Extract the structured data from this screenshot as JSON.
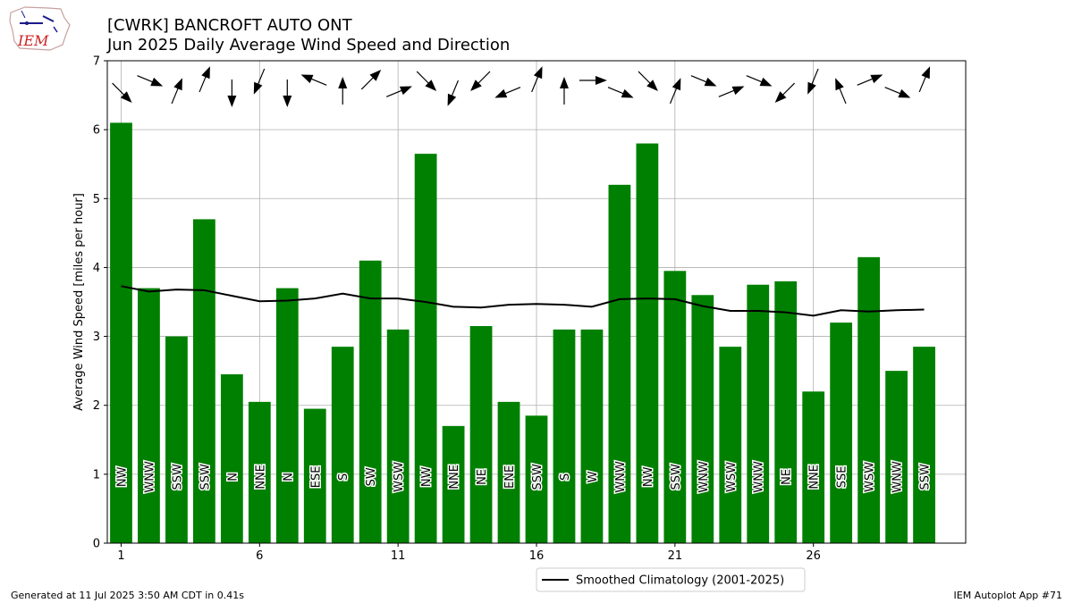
{
  "header": {
    "title_line_1": "[CWRK] BANCROFT AUTO  ONT",
    "title_line_2": "Jun 2025 Daily Average Wind Speed and Direction",
    "logo_text": "IEM"
  },
  "footer": {
    "left": "Generated at 11 Jul 2025 3:50 AM CDT in 0.41s",
    "right": "IEM Autoplot App #71"
  },
  "chart_data": {
    "type": "bar",
    "title": "",
    "xlabel": "",
    "ylabel": "Average Wind Speed [miles per hour]",
    "xlim": [
      0.5,
      31.5
    ],
    "ylim": [
      0,
      7
    ],
    "x_ticks": [
      "1",
      "6",
      "11",
      "16",
      "21",
      "26"
    ],
    "y_ticks": [
      "0",
      "1",
      "2",
      "3",
      "4",
      "5",
      "6",
      "7"
    ],
    "grid": true,
    "legend_position": "bottom-center",
    "bar_color": "#008000",
    "days": [
      1,
      2,
      3,
      4,
      5,
      6,
      7,
      8,
      9,
      10,
      11,
      12,
      13,
      14,
      15,
      16,
      17,
      18,
      19,
      20,
      21,
      22,
      23,
      24,
      25,
      26,
      27,
      28,
      29,
      30
    ],
    "values": [
      6.1,
      3.7,
      3.0,
      4.7,
      2.45,
      2.05,
      3.7,
      1.95,
      2.85,
      4.1,
      3.1,
      5.65,
      1.7,
      3.15,
      2.05,
      1.85,
      3.1,
      3.1,
      5.2,
      5.8,
      3.95,
      3.6,
      2.85,
      3.75,
      3.8,
      2.2,
      3.2,
      4.15,
      2.5,
      2.85
    ],
    "directions": [
      "NW",
      "WNW",
      "SSW",
      "SSW",
      "N",
      "NNE",
      "N",
      "ESE",
      "S",
      "SW",
      "WSW",
      "NW",
      "NNE",
      "NE",
      "ENE",
      "SSW",
      "S",
      "W",
      "WNW",
      "NW",
      "SSW",
      "WNW",
      "WSW",
      "WNW",
      "NE",
      "NNE",
      "SSE",
      "WSW",
      "WNW",
      "SSW"
    ],
    "direction_degrees": [
      315,
      292.5,
      202.5,
      202.5,
      0,
      22.5,
      0,
      112.5,
      180,
      225,
      247.5,
      315,
      22.5,
      45,
      67.5,
      202.5,
      180,
      270,
      292.5,
      315,
      202.5,
      292.5,
      247.5,
      292.5,
      45,
      22.5,
      157.5,
      247.5,
      292.5,
      202.5
    ],
    "series": [
      {
        "name": "Smoothed Climatology (2001-2025)",
        "color": "#000000",
        "values": [
          3.73,
          3.65,
          3.68,
          3.67,
          3.59,
          3.51,
          3.52,
          3.55,
          3.62,
          3.55,
          3.55,
          3.5,
          3.43,
          3.42,
          3.46,
          3.47,
          3.46,
          3.43,
          3.54,
          3.55,
          3.54,
          3.44,
          3.37,
          3.37,
          3.35,
          3.3,
          3.38,
          3.36,
          3.38,
          3.39
        ]
      }
    ]
  }
}
